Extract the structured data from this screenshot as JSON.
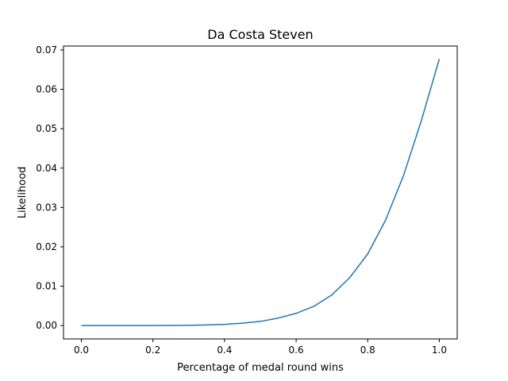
{
  "chart_data": {
    "type": "line",
    "title": "Da Costa Steven",
    "xlabel": "Percentage of medal round wins",
    "ylabel": "Likelihood",
    "xlim": [
      -0.05,
      1.05
    ],
    "ylim": [
      -0.0034,
      0.071
    ],
    "xticks": [
      0.0,
      0.2,
      0.4,
      0.6,
      0.8,
      1.0
    ],
    "xtick_labels": [
      "0.0",
      "0.2",
      "0.4",
      "0.6",
      "0.8",
      "1.0"
    ],
    "yticks": [
      0.0,
      0.01,
      0.02,
      0.03,
      0.04,
      0.05,
      0.06,
      0.07
    ],
    "ytick_labels": [
      "0.00",
      "0.01",
      "0.02",
      "0.03",
      "0.04",
      "0.05",
      "0.06",
      "0.07"
    ],
    "grid": false,
    "legend": "none",
    "series": [
      {
        "color": "#1f77b4",
        "x": [
          0.0,
          0.05,
          0.1,
          0.15,
          0.2,
          0.25,
          0.3,
          0.35,
          0.4,
          0.45,
          0.5,
          0.55,
          0.6,
          0.65,
          0.7,
          0.75,
          0.8,
          0.85,
          0.9,
          0.95,
          1.0
        ],
        "y": [
          0.0,
          0.0,
          0.0,
          0.0,
          0.0,
          2e-05,
          6e-05,
          0.00015,
          0.0003,
          0.0006,
          0.00105,
          0.0019,
          0.0031,
          0.0049,
          0.0078,
          0.0122,
          0.0182,
          0.0268,
          0.0381,
          0.0521,
          0.0677
        ]
      }
    ]
  }
}
